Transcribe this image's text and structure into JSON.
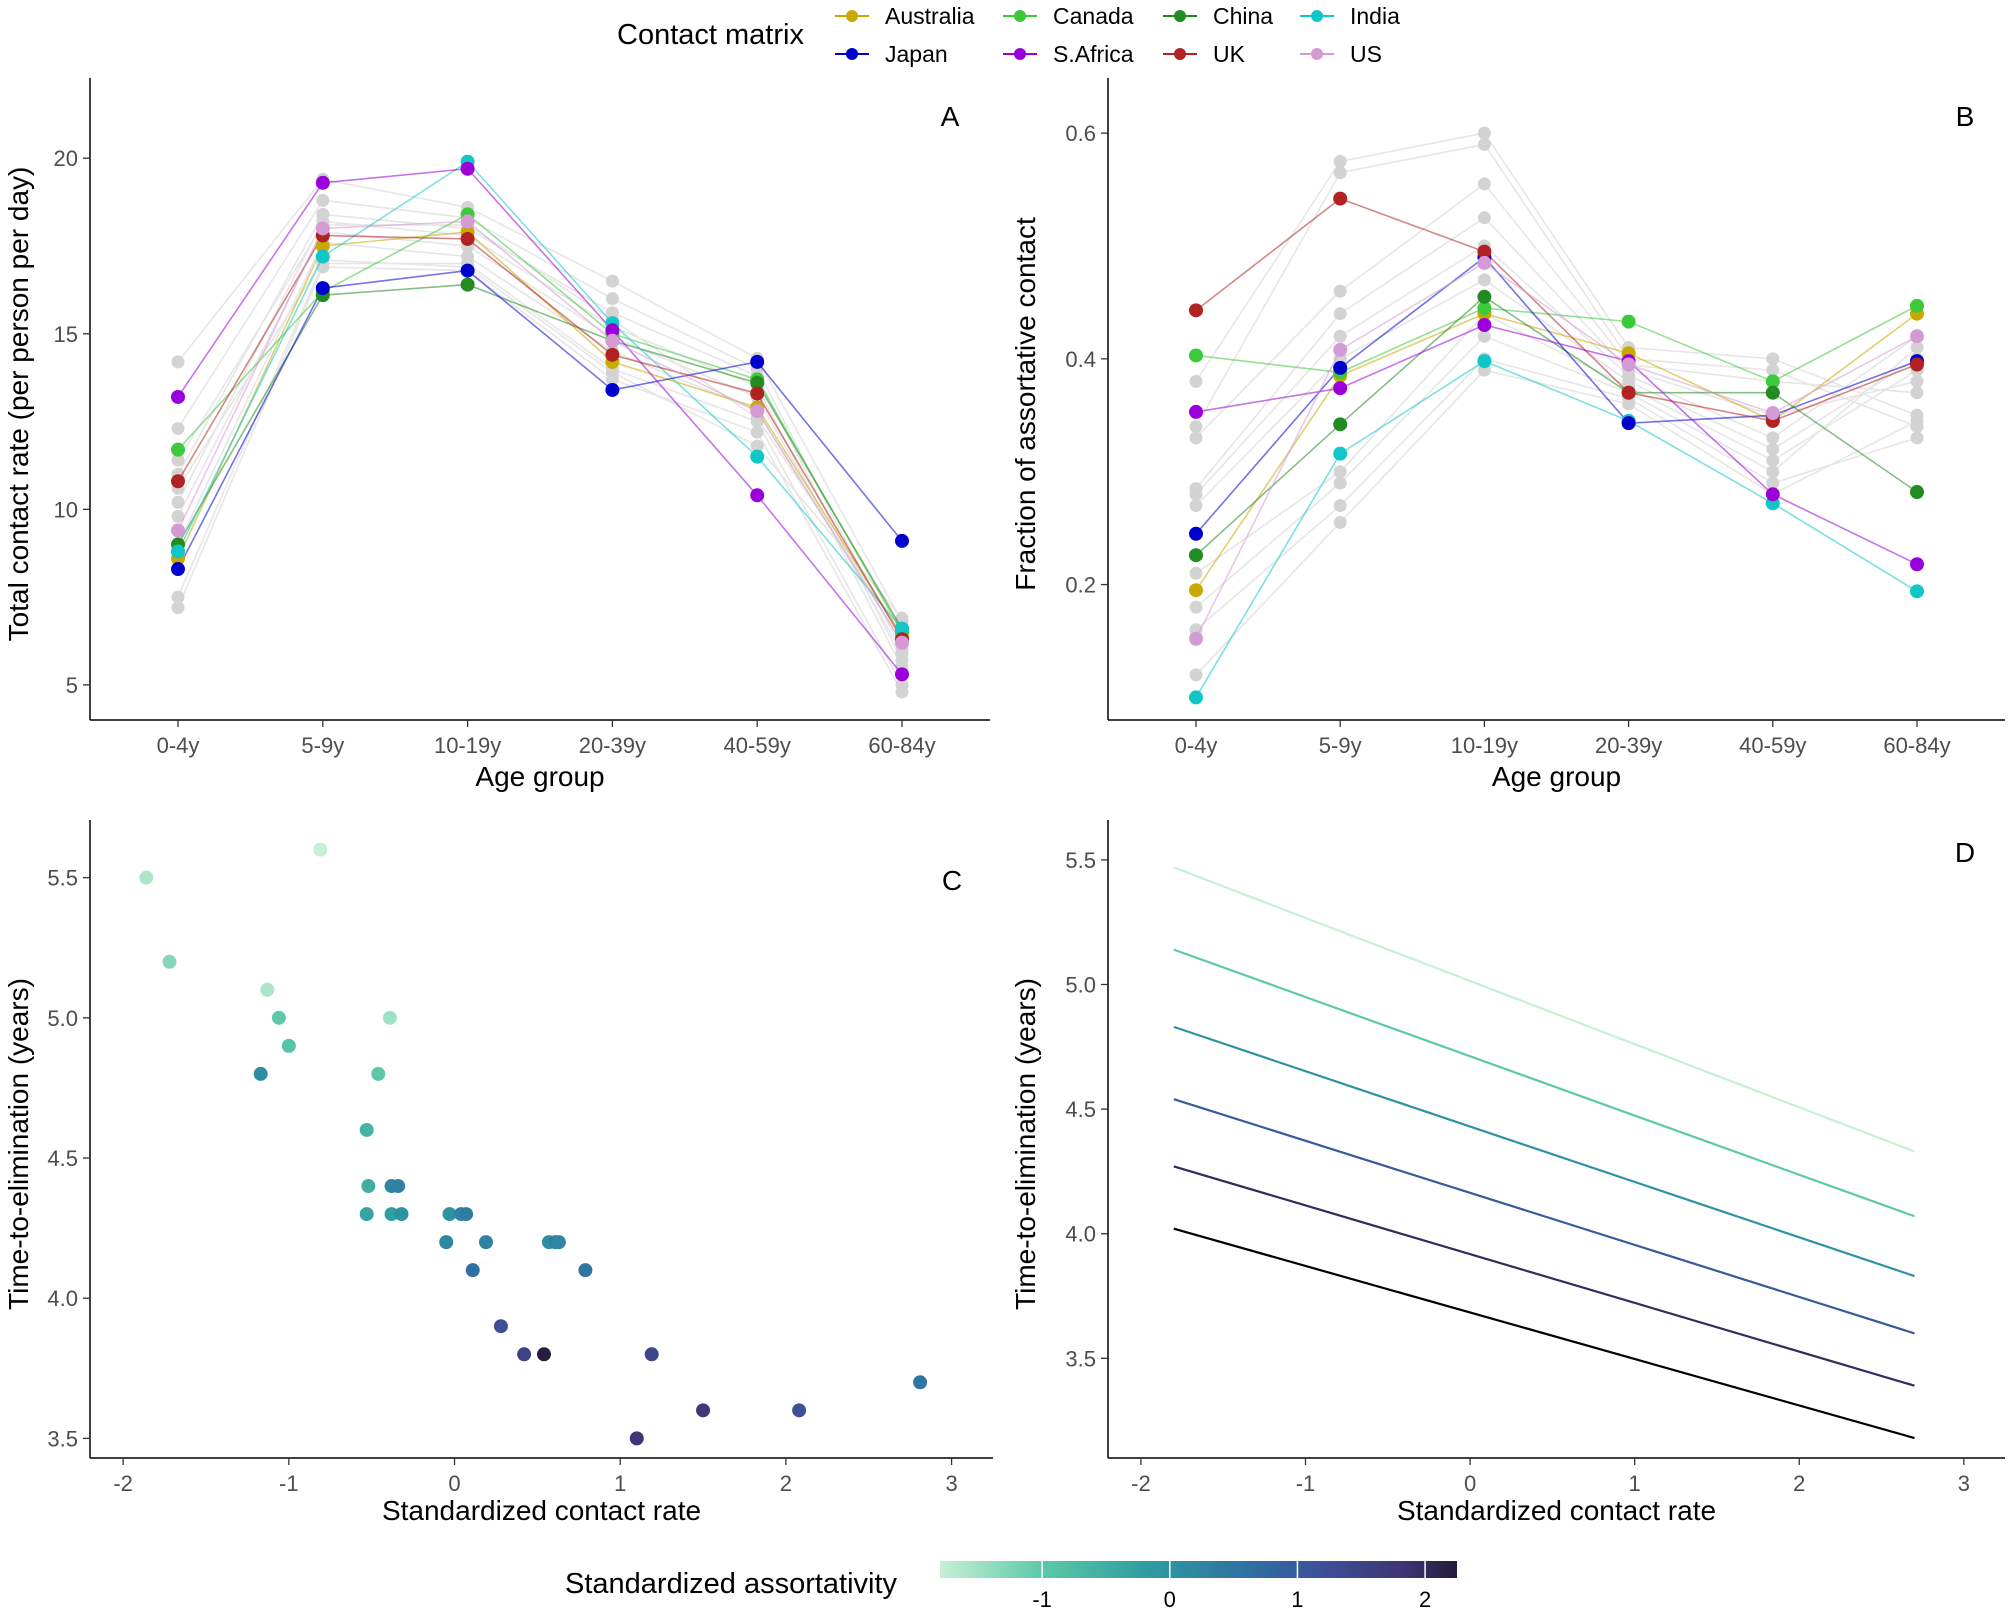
{
  "legend": {
    "title": "Contact matrix",
    "countries": [
      {
        "name": "Australia",
        "color": "#C9A800"
      },
      {
        "name": "Canada",
        "color": "#3CC93C"
      },
      {
        "name": "China",
        "color": "#228B22"
      },
      {
        "name": "India",
        "color": "#11C6C6"
      },
      {
        "name": "Japan",
        "color": "#0000CD"
      },
      {
        "name": "S.Africa",
        "color": "#9A00D9"
      },
      {
        "name": "UK",
        "color": "#B22222"
      },
      {
        "name": "US",
        "color": "#D49AD4"
      }
    ],
    "background_color": "#D3D3D3"
  },
  "colorbar": {
    "title": "Standardized assortativity",
    "ticks": [
      "-1",
      "0",
      "1",
      "2"
    ],
    "range": [
      -1.8,
      2.25
    ],
    "colors": [
      "#C6F0D4",
      "#5CC8A8",
      "#2E9DA0",
      "#2F6FA3",
      "#3E4E95",
      "#3F3473",
      "#231A3A"
    ]
  },
  "chart_data": [
    {
      "panel": "A",
      "type": "line",
      "xlabel": "Age group",
      "ylabel": "Total contact rate (per person per day)",
      "categories": [
        "0-4y",
        "5-9y",
        "10-19y",
        "20-39y",
        "40-59y",
        "60-84y"
      ],
      "ylim": [
        4,
        22
      ],
      "yticks": [
        "5",
        "10",
        "15",
        "20"
      ],
      "series": [
        {
          "name": "Australia",
          "values": [
            8.6,
            17.5,
            17.9,
            14.2,
            12.9,
            6.4
          ]
        },
        {
          "name": "Canada",
          "values": [
            11.7,
            16.2,
            18.4,
            15.0,
            13.7,
            6.5
          ]
        },
        {
          "name": "China",
          "values": [
            9.0,
            16.1,
            16.4,
            14.8,
            13.6,
            6.6
          ]
        },
        {
          "name": "India",
          "values": [
            8.8,
            17.2,
            19.9,
            15.3,
            11.5,
            6.6
          ]
        },
        {
          "name": "Japan",
          "values": [
            8.3,
            16.3,
            16.8,
            13.4,
            14.2,
            9.1
          ]
        },
        {
          "name": "S.Africa",
          "values": [
            13.2,
            19.3,
            19.7,
            15.1,
            10.4,
            5.3
          ]
        },
        {
          "name": "UK",
          "values": [
            10.8,
            17.8,
            17.7,
            14.4,
            13.3,
            6.3
          ]
        },
        {
          "name": "US",
          "values": [
            9.4,
            18.0,
            18.2,
            14.8,
            12.8,
            6.2
          ]
        }
      ],
      "background_series": [
        [
          14.2,
          19.4,
          18.6,
          16.5,
          14.3,
          6.8
        ],
        [
          12.3,
          18.8,
          18.3,
          16.0,
          14.0,
          6.0
        ],
        [
          11.0,
          18.4,
          18.0,
          15.6,
          13.8,
          5.7
        ],
        [
          10.2,
          18.2,
          17.8,
          15.2,
          13.5,
          5.5
        ],
        [
          9.8,
          17.9,
          17.5,
          14.9,
          13.2,
          5.9
        ],
        [
          9.0,
          17.6,
          17.2,
          14.5,
          12.8,
          6.2
        ],
        [
          7.5,
          17.0,
          17.0,
          14.0,
          12.5,
          5.0
        ],
        [
          7.2,
          16.9,
          16.8,
          13.7,
          12.2,
          4.8
        ],
        [
          10.6,
          17.1,
          16.9,
          13.9,
          11.8,
          6.9
        ],
        [
          11.4,
          18.1,
          18.1,
          15.4,
          12.6,
          6.4
        ]
      ]
    },
    {
      "panel": "B",
      "type": "line",
      "xlabel": "Age group",
      "ylabel": "Fraction of assortative contact",
      "categories": [
        "0-4y",
        "5-9y",
        "10-19y",
        "20-39y",
        "40-59y",
        "60-84y"
      ],
      "ylim": [
        0.08,
        0.64
      ],
      "yticks": [
        "0.2",
        "0.4",
        "0.6"
      ],
      "series": [
        {
          "name": "Australia",
          "values": [
            0.195,
            0.385,
            0.44,
            0.405,
            0.345,
            0.44
          ]
        },
        {
          "name": "Canada",
          "values": [
            0.403,
            0.388,
            0.445,
            0.433,
            0.38,
            0.447
          ]
        },
        {
          "name": "China",
          "values": [
            0.226,
            0.342,
            0.455,
            0.37,
            0.37,
            0.282
          ]
        },
        {
          "name": "India",
          "values": [
            0.1,
            0.316,
            0.398,
            0.345,
            0.272,
            0.194
          ]
        },
        {
          "name": "Japan",
          "values": [
            0.245,
            0.392,
            0.49,
            0.343,
            0.35,
            0.398
          ]
        },
        {
          "name": "S.Africa",
          "values": [
            0.353,
            0.374,
            0.43,
            0.398,
            0.28,
            0.218
          ]
        },
        {
          "name": "UK",
          "values": [
            0.443,
            0.542,
            0.495,
            0.37,
            0.345,
            0.395
          ]
        },
        {
          "name": "US",
          "values": [
            0.152,
            0.408,
            0.485,
            0.395,
            0.352,
            0.42
          ]
        }
      ],
      "background_series": [
        [
          0.38,
          0.575,
          0.6,
          0.41,
          0.4,
          0.35
        ],
        [
          0.34,
          0.565,
          0.59,
          0.4,
          0.39,
          0.34
        ],
        [
          0.33,
          0.46,
          0.555,
          0.395,
          0.38,
          0.37
        ],
        [
          0.285,
          0.44,
          0.525,
          0.39,
          0.35,
          0.38
        ],
        [
          0.28,
          0.42,
          0.5,
          0.385,
          0.33,
          0.42
        ],
        [
          0.27,
          0.4,
          0.47,
          0.38,
          0.32,
          0.4
        ],
        [
          0.21,
          0.3,
          0.44,
          0.375,
          0.31,
          0.39
        ],
        [
          0.18,
          0.29,
          0.42,
          0.37,
          0.3,
          0.41
        ],
        [
          0.16,
          0.27,
          0.4,
          0.365,
          0.29,
          0.33
        ],
        [
          0.12,
          0.255,
          0.39,
          0.36,
          0.28,
          0.345
        ]
      ]
    },
    {
      "panel": "C",
      "type": "scatter",
      "xlabel": "Standardized contact rate",
      "ylabel": "Time-to-elimination (years)",
      "xlim": [
        -2.2,
        3.25
      ],
      "ylim": [
        3.43,
        5.67
      ],
      "xticks": [
        "-2",
        "-1",
        "0",
        "1",
        "2",
        "3"
      ],
      "yticks": [
        "3.5",
        "4.0",
        "4.5",
        "5.0",
        "5.5"
      ],
      "points": [
        {
          "x": -1.86,
          "y": 5.5,
          "a": -1.6
        },
        {
          "x": -0.81,
          "y": 5.6,
          "a": -1.9
        },
        {
          "x": -1.72,
          "y": 5.2,
          "a": -1.3
        },
        {
          "x": -1.13,
          "y": 5.1,
          "a": -1.6
        },
        {
          "x": -0.39,
          "y": 5.0,
          "a": -1.5
        },
        {
          "x": -1.06,
          "y": 5.0,
          "a": -1.0
        },
        {
          "x": -1.0,
          "y": 4.9,
          "a": -0.9
        },
        {
          "x": -1.17,
          "y": 4.8,
          "a": 0.1
        },
        {
          "x": -0.46,
          "y": 4.8,
          "a": -1.0
        },
        {
          "x": -0.53,
          "y": 4.6,
          "a": -0.6
        },
        {
          "x": -0.52,
          "y": 4.4,
          "a": -0.5
        },
        {
          "x": -0.38,
          "y": 4.4,
          "a": 0.2
        },
        {
          "x": -0.34,
          "y": 4.4,
          "a": 0.3
        },
        {
          "x": -0.53,
          "y": 4.3,
          "a": -0.3
        },
        {
          "x": -0.38,
          "y": 4.3,
          "a": -0.2
        },
        {
          "x": -0.32,
          "y": 4.3,
          "a": 0.0
        },
        {
          "x": -0.03,
          "y": 4.3,
          "a": 0.0
        },
        {
          "x": 0.04,
          "y": 4.3,
          "a": 0.3
        },
        {
          "x": 0.07,
          "y": 4.3,
          "a": 0.4
        },
        {
          "x": -0.05,
          "y": 4.2,
          "a": 0.2
        },
        {
          "x": 0.19,
          "y": 4.2,
          "a": 0.3
        },
        {
          "x": 0.57,
          "y": 4.2,
          "a": 0.1
        },
        {
          "x": 0.61,
          "y": 4.2,
          "a": 0.3
        },
        {
          "x": 0.63,
          "y": 4.2,
          "a": 0.2
        },
        {
          "x": 0.11,
          "y": 4.1,
          "a": 0.6
        },
        {
          "x": 0.79,
          "y": 4.1,
          "a": 0.5
        },
        {
          "x": 0.28,
          "y": 3.9,
          "a": 1.2
        },
        {
          "x": 0.42,
          "y": 3.8,
          "a": 1.5
        },
        {
          "x": 0.54,
          "y": 3.8,
          "a": 2.2
        },
        {
          "x": 1.19,
          "y": 3.8,
          "a": 1.4
        },
        {
          "x": 1.5,
          "y": 3.6,
          "a": 1.7
        },
        {
          "x": 2.08,
          "y": 3.6,
          "a": 1.2
        },
        {
          "x": 1.1,
          "y": 3.5,
          "a": 1.8
        },
        {
          "x": 2.81,
          "y": 3.7,
          "a": 0.5
        }
      ]
    },
    {
      "panel": "D",
      "type": "line",
      "xlabel": "Standardized contact rate",
      "ylabel": "Time-to-elimination (years)",
      "xlim": [
        -2.2,
        3.25
      ],
      "ylim": [
        3.1,
        5.62
      ],
      "xticks": [
        "-2",
        "-1",
        "0",
        "1",
        "2",
        "3"
      ],
      "yticks": [
        "3.5",
        "4.0",
        "4.5",
        "5.0",
        "5.5"
      ],
      "x": [
        -1.8,
        2.7
      ],
      "series": [
        {
          "name": "assortativity -2",
          "assort": -2.0,
          "values": [
            5.47,
            4.33
          ]
        },
        {
          "name": "assortativity -1",
          "assort": -1.0,
          "values": [
            5.14,
            4.07
          ]
        },
        {
          "name": "assortativity 0",
          "assort": 0.0,
          "values": [
            4.83,
            3.83
          ]
        },
        {
          "name": "assortativity 1",
          "assort": 1.0,
          "values": [
            4.54,
            3.6
          ]
        },
        {
          "name": "assortativity 2",
          "assort": 2.0,
          "values": [
            4.27,
            3.39
          ]
        },
        {
          "name": "assortativity 3",
          "assort": 3.0,
          "values": [
            4.02,
            3.18
          ]
        }
      ]
    }
  ]
}
